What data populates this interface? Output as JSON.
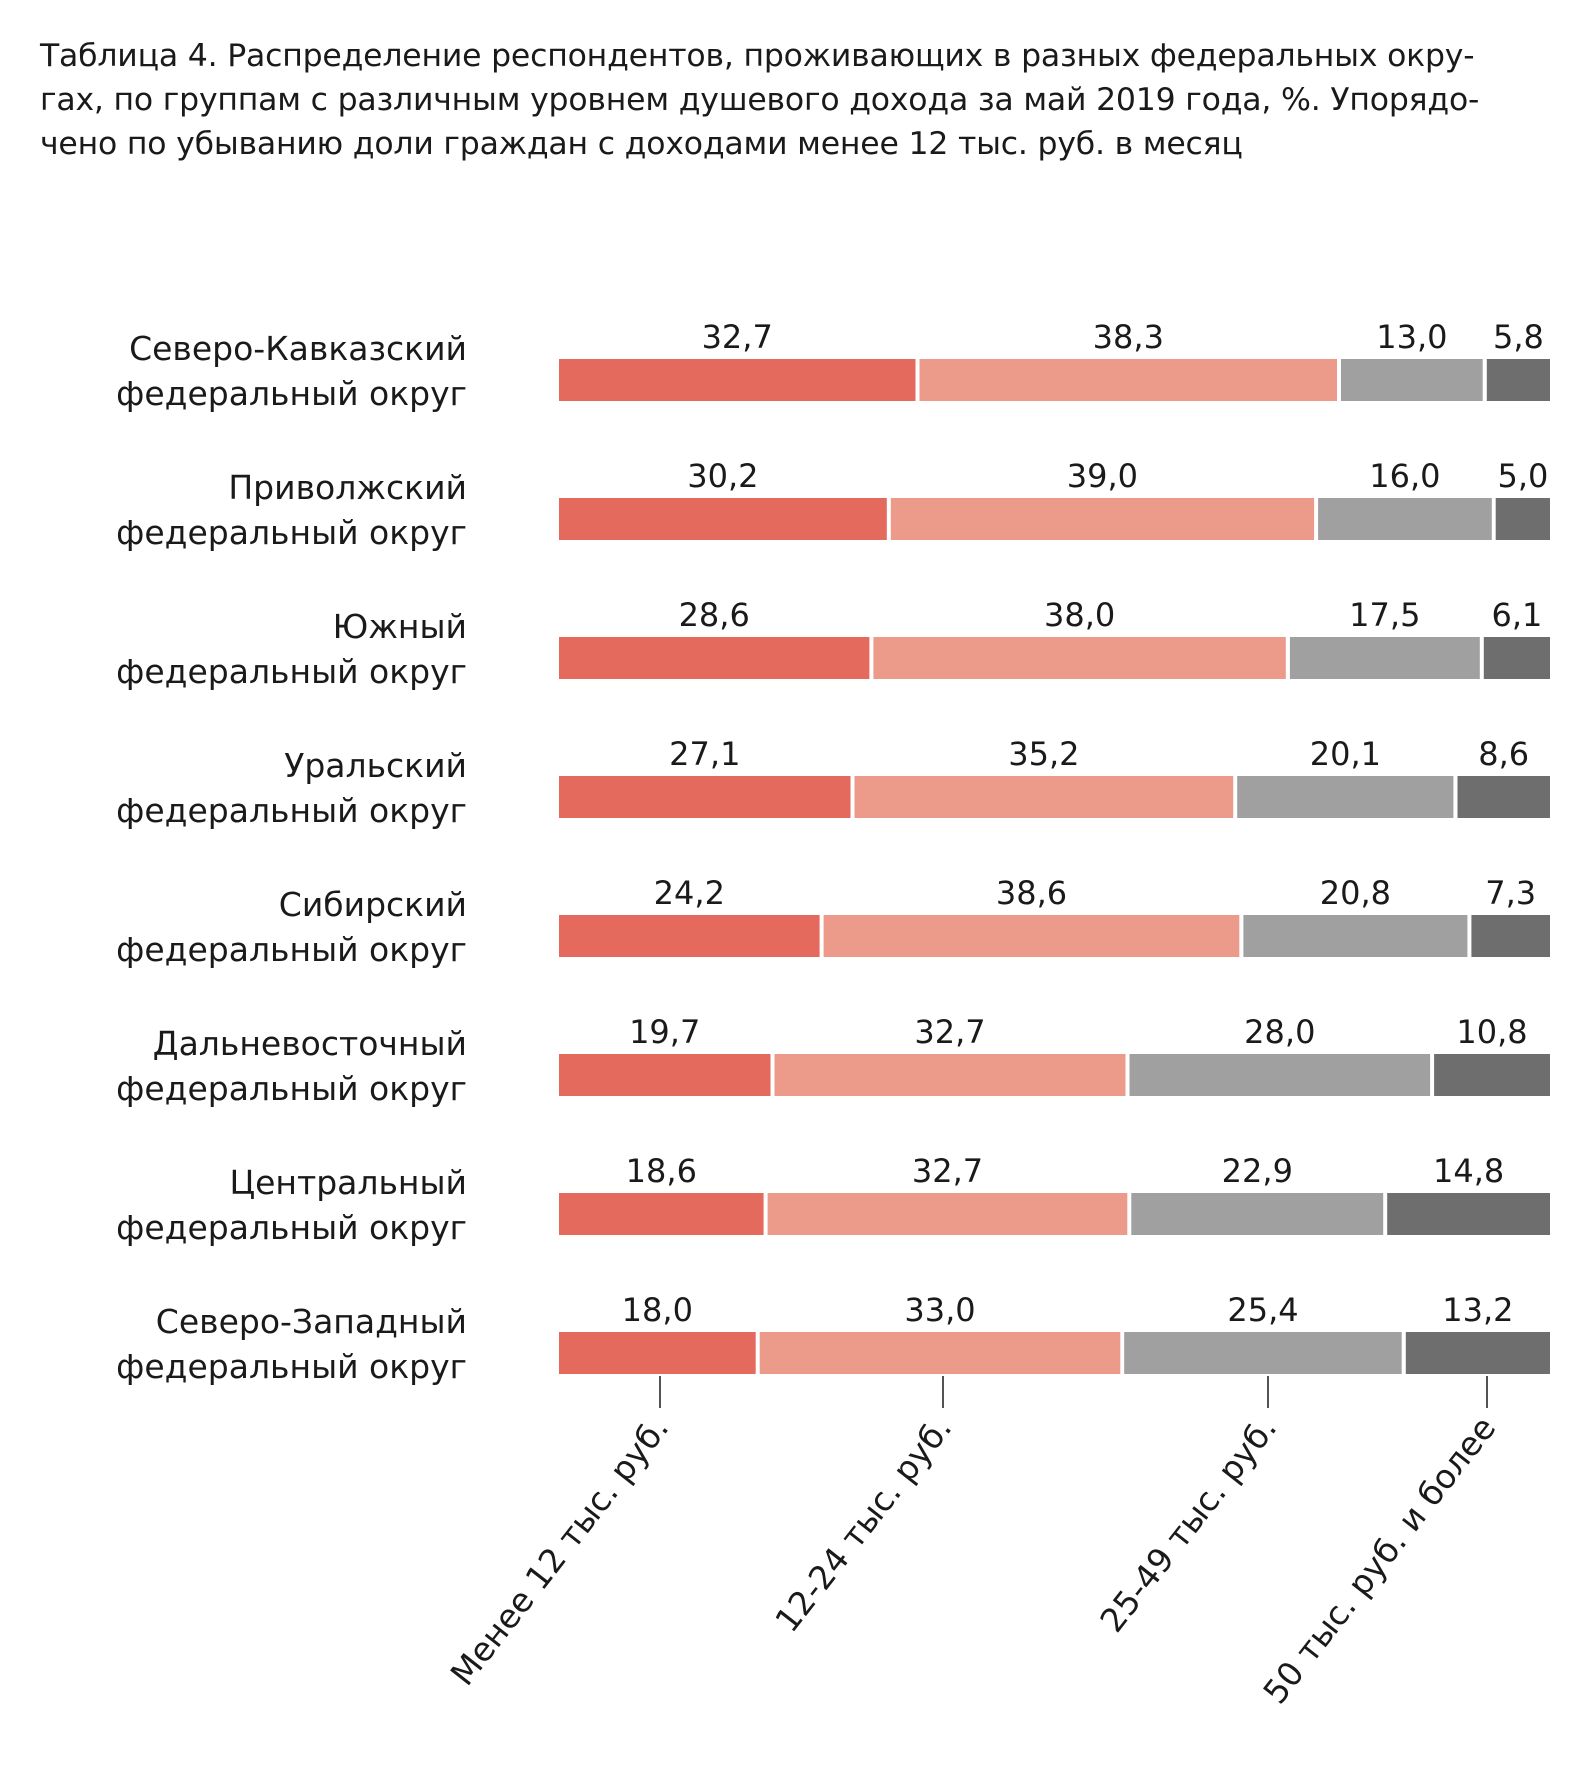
{
  "title_lines": [
    "Таблица 4. Распределение респондентов, проживающих в разных федеральных окру-",
    "гах, по группам с различным уровнем душевого дохода за май 2019 года, %. Упорядо-",
    "чено по убыванию доли граждан с доходами менее 12 тыс. руб. в месяц"
  ],
  "chart_data": {
    "type": "bar",
    "orientation": "horizontal",
    "stacked": true,
    "title": "Таблица 4. Распределение респондентов, проживающих в разных федеральных округах, по группам с различным уровнем душевого дохода за май 2019 года, %. Упорядочено по убыванию доли граждан с доходами менее 12 тыс. руб. в месяц",
    "categories": [
      [
        "Северо-Кавказский",
        "федеральный округ"
      ],
      [
        "Приволжский",
        "федеральный округ"
      ],
      [
        "Южный",
        "федеральный округ"
      ],
      [
        "Уральский",
        "федеральный округ"
      ],
      [
        "Сибирский",
        "федеральный округ"
      ],
      [
        "Дальневосточный",
        "федеральный округ"
      ],
      [
        "Центральный",
        "федеральный округ"
      ],
      [
        "Северо-Западный",
        "федеральный округ"
      ]
    ],
    "series": [
      {
        "name": "Менее 12 тыс. руб.",
        "color": "#e46a5e",
        "values": [
          32.7,
          30.2,
          28.6,
          27.1,
          24.2,
          19.7,
          18.6,
          18.0
        ],
        "labels": [
          "32,7",
          "30,2",
          "28,6",
          "27,1",
          "24,2",
          "19,7",
          "18,6",
          "18,0"
        ]
      },
      {
        "name": "12-24 тыс. руб.",
        "color": "#ec9a8a",
        "values": [
          38.3,
          39.0,
          38.0,
          35.2,
          38.6,
          32.7,
          32.7,
          33.0
        ],
        "labels": [
          "38,3",
          "39,0",
          "38,0",
          "35,2",
          "38,6",
          "32,7",
          "32,7",
          "33,0"
        ]
      },
      {
        "name": "25-49 тыс. руб.",
        "color": "#a0a0a0",
        "values": [
          13.0,
          16.0,
          17.5,
          20.1,
          20.8,
          28.0,
          22.9,
          25.4
        ],
        "labels": [
          "13,0",
          "16,0",
          "17,5",
          "20,1",
          "20,8",
          "28,0",
          "22,9",
          "25,4"
        ]
      },
      {
        "name": "50 тыс. руб. и более",
        "color": "#6e6e6e",
        "values": [
          5.8,
          5.0,
          6.1,
          8.6,
          7.3,
          10.8,
          14.8,
          13.2
        ],
        "labels": [
          "5,8",
          "5,0",
          "6,1",
          "8,6",
          "7,3",
          "10,8",
          "14,8",
          "13,2"
        ]
      }
    ],
    "legend_position": "bottom-rotated",
    "grid": false
  }
}
